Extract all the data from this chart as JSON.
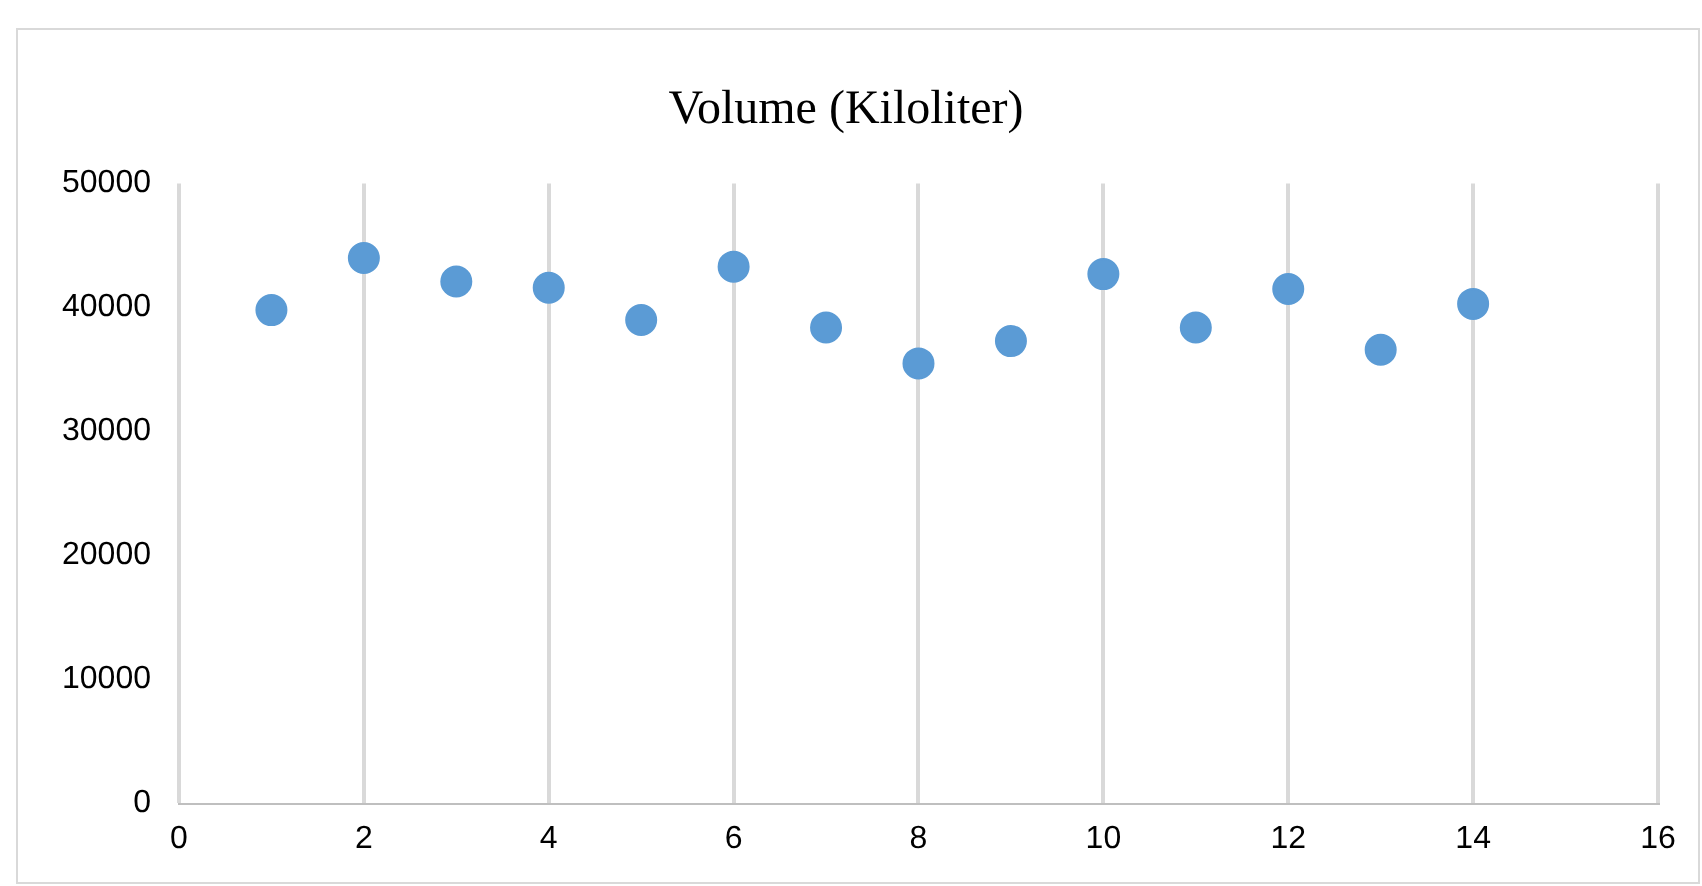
{
  "chart_data": {
    "type": "scatter",
    "title": "Volume (Kiloliter)",
    "x": [
      1,
      2,
      3,
      4,
      5,
      6,
      7,
      8,
      9,
      10,
      11,
      12,
      13,
      14
    ],
    "series": [
      {
        "color": "#5b9bd5",
        "values": [
          39800,
          44000,
          42100,
          41600,
          39000,
          43300,
          38400,
          35500,
          37300,
          42700,
          38400,
          41500,
          36600,
          40300
        ]
      }
    ],
    "xlim": [
      0,
      16
    ],
    "xticks": [
      0,
      2,
      4,
      6,
      8,
      10,
      12,
      14,
      16
    ],
    "ylim": [
      0,
      50000
    ],
    "yticks": [
      0,
      10000,
      20000,
      30000,
      40000,
      50000
    ],
    "grid": "x",
    "legend": false,
    "marker": "circle"
  }
}
